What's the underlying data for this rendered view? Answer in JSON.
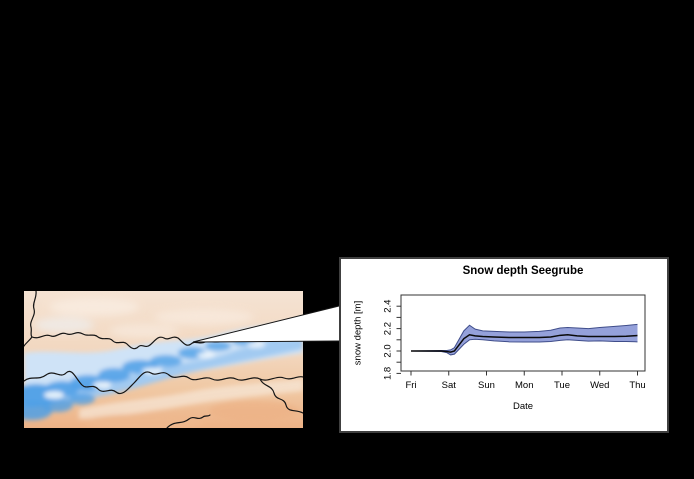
{
  "slide": {
    "background": "#000000"
  },
  "map_panel": {
    "kind": "raster-snow-map-of-alps",
    "palette": {
      "land_pale": "#f5e3d3",
      "land_tan": "#f2d7bf",
      "land_orange": "#edb286",
      "snow_pale": "#cfe3f7",
      "snow_medium": "#9cc6ef",
      "snow_deep": "#4d9fe6",
      "ridge_white": "#f2f8fd",
      "border_line": "#151515"
    }
  },
  "callout": {
    "fill": "#ffffff",
    "edge": "#151515"
  },
  "chart_panel": {
    "background": "#ffffff",
    "border_color": "#404040",
    "title": "Snow depth Seegrube",
    "xlabel": "Date",
    "ylabel": "snow depth [m]"
  },
  "chart_data": {
    "type": "area",
    "title": "Snow depth Seegrube",
    "xlabel": "Date",
    "ylabel": "snow depth [m]",
    "x_tick_labels": [
      "Fri",
      "Sat",
      "Sun",
      "Mon",
      "Tue",
      "Wed",
      "Thu"
    ],
    "xlim_days": [
      0,
      6
    ],
    "ylim": [
      1.8,
      2.47
    ],
    "y_tick_values_minor": [
      1.8,
      1.9,
      2.0,
      2.1,
      2.2,
      2.3,
      2.4
    ],
    "y_tick_label_values": [
      1.8,
      2.0,
      2.2,
      2.4
    ],
    "y_tick_labels": [
      "1.8",
      "2.0",
      "2.2",
      "2.4"
    ],
    "grid": false,
    "legend": "none",
    "band_fill": "#95a1da",
    "band_edge": "#3f4d8a",
    "median_color": "#0a0a0a",
    "axis_color": "#333333",
    "series": {
      "x_days": [
        0.0,
        0.8,
        0.95,
        1.05,
        1.15,
        1.4,
        1.55,
        1.7,
        1.9,
        2.2,
        2.6,
        3.0,
        3.4,
        3.7,
        3.95,
        4.15,
        4.4,
        4.7,
        5.0,
        5.4,
        5.7,
        6.0
      ],
      "upper": [
        2.0,
        2.005,
        2.005,
        2.01,
        2.03,
        2.18,
        2.23,
        2.195,
        2.18,
        2.175,
        2.17,
        2.17,
        2.175,
        2.185,
        2.205,
        2.21,
        2.205,
        2.2,
        2.21,
        2.22,
        2.228,
        2.238
      ],
      "median": [
        2.0,
        2.0,
        1.995,
        1.99,
        2.0,
        2.11,
        2.145,
        2.135,
        2.13,
        2.125,
        2.12,
        2.12,
        2.12,
        2.125,
        2.14,
        2.145,
        2.135,
        2.13,
        2.13,
        2.13,
        2.132,
        2.138
      ],
      "lower": [
        2.0,
        1.995,
        1.985,
        1.965,
        1.972,
        2.06,
        2.1,
        2.105,
        2.1,
        2.09,
        2.082,
        2.08,
        2.08,
        2.085,
        2.095,
        2.1,
        2.095,
        2.088,
        2.09,
        2.085,
        2.085,
        2.082
      ]
    }
  }
}
